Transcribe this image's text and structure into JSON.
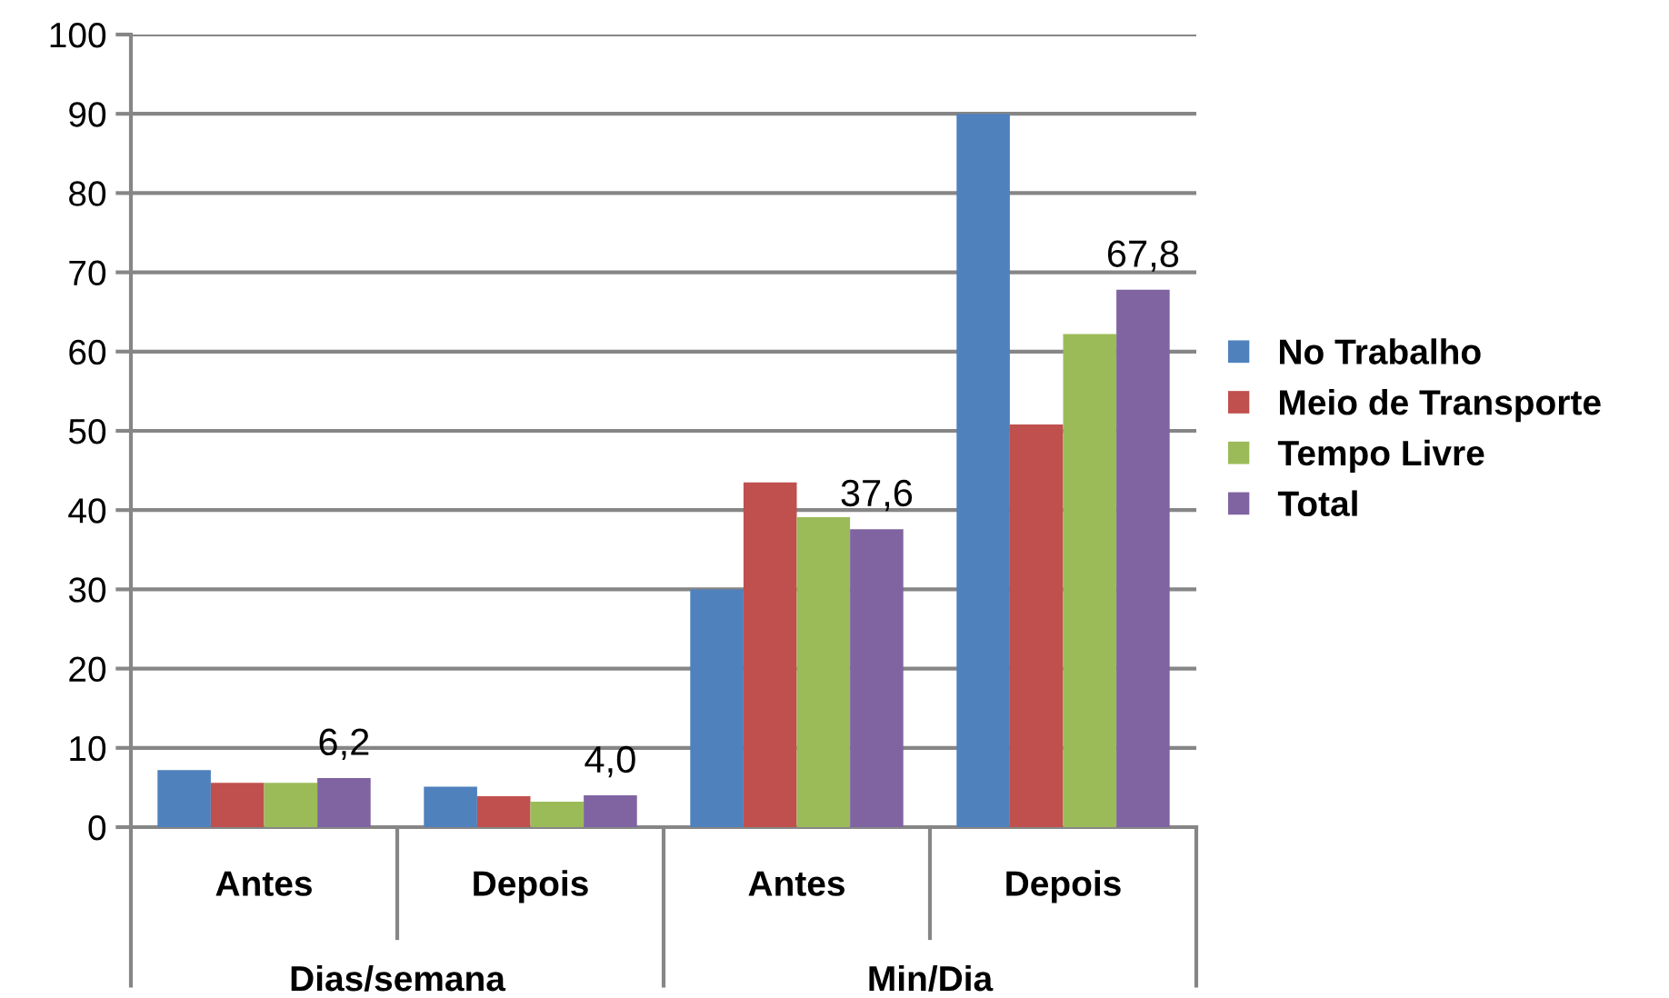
{
  "chart_data": {
    "type": "bar",
    "categories": [
      "Antes",
      "Depois",
      "Antes",
      "Depois"
    ],
    "series": [
      {
        "name": "No Trabalho",
        "color": "#4f81bd",
        "values": [
          7.2,
          5.1,
          30,
          90
        ]
      },
      {
        "name": "Meio de Transporte",
        "color": "#c0504d",
        "values": [
          5.6,
          3.9,
          43.5,
          50.8
        ]
      },
      {
        "name": "Tempo Livre",
        "color": "#9bbb59",
        "values": [
          5.6,
          3.2,
          39.1,
          62.2
        ]
      },
      {
        "name": "Total",
        "color": "#8064a2",
        "values": [
          6.2,
          4.0,
          37.6,
          67.8
        ],
        "value_labels": [
          "6,2",
          "4,0",
          "37,6",
          "67,8"
        ]
      }
    ],
    "annotations": [
      "Dias/semana",
      "Min/Dia"
    ],
    "ylim": [
      0,
      100
    ],
    "yticks": [
      0,
      10,
      20,
      30,
      40,
      50,
      60,
      70,
      80,
      90,
      100
    ],
    "grid": "y",
    "legend": "right"
  }
}
